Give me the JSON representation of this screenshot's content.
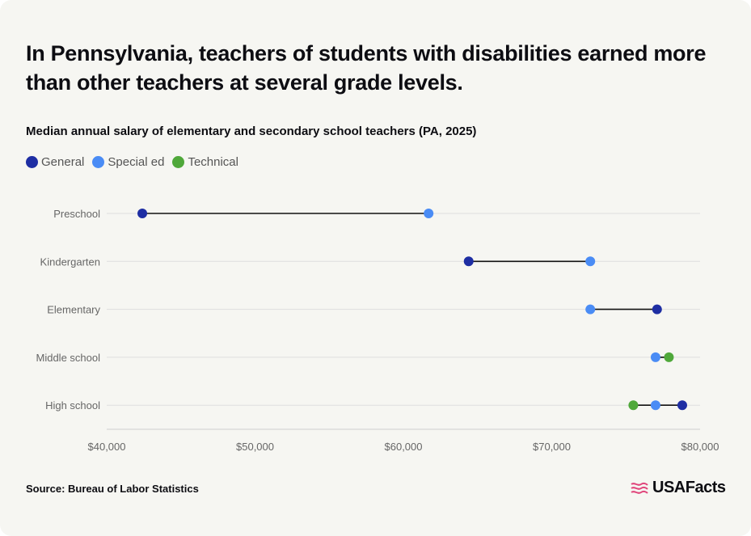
{
  "header": {
    "title": "In Pennsylvania, teachers of students with disabilities earned more than other teachers at several grade levels.",
    "subtitle": "Median annual salary of elementary and secondary school teachers (PA, 2025)"
  },
  "legend": [
    {
      "label": "General",
      "color": "#1e2ea3"
    },
    {
      "label": "Special ed",
      "color": "#4a8cf5"
    },
    {
      "label": "Technical",
      "color": "#4fa83a"
    }
  ],
  "chart_data": {
    "type": "dumbbell",
    "title": "Median annual salary of elementary and secondary school teachers (PA, 2025)",
    "categories": [
      "Preschool",
      "Kindergarten",
      "Elementary",
      "Middle school",
      "High school"
    ],
    "series": [
      {
        "name": "General",
        "color": "#1e2ea3",
        "values": [
          42400,
          64400,
          77100,
          null,
          78800
        ]
      },
      {
        "name": "Special ed",
        "color": "#4a8cf5",
        "values": [
          61700,
          72600,
          72600,
          77000,
          77000
        ]
      },
      {
        "name": "Technical",
        "color": "#4fa83a",
        "values": [
          null,
          null,
          null,
          77900,
          75500
        ]
      }
    ],
    "xlim": [
      40000,
      80000
    ],
    "xticks": [
      40000,
      50000,
      60000,
      70000,
      80000
    ],
    "xtick_labels": [
      "$40,000",
      "$50,000",
      "$60,000",
      "$70,000",
      "$80,000"
    ],
    "grid": true,
    "legend_position": "top-left"
  },
  "footer": {
    "source": "Source: Bureau of Labor Statistics",
    "logo_text": "USAFacts"
  }
}
